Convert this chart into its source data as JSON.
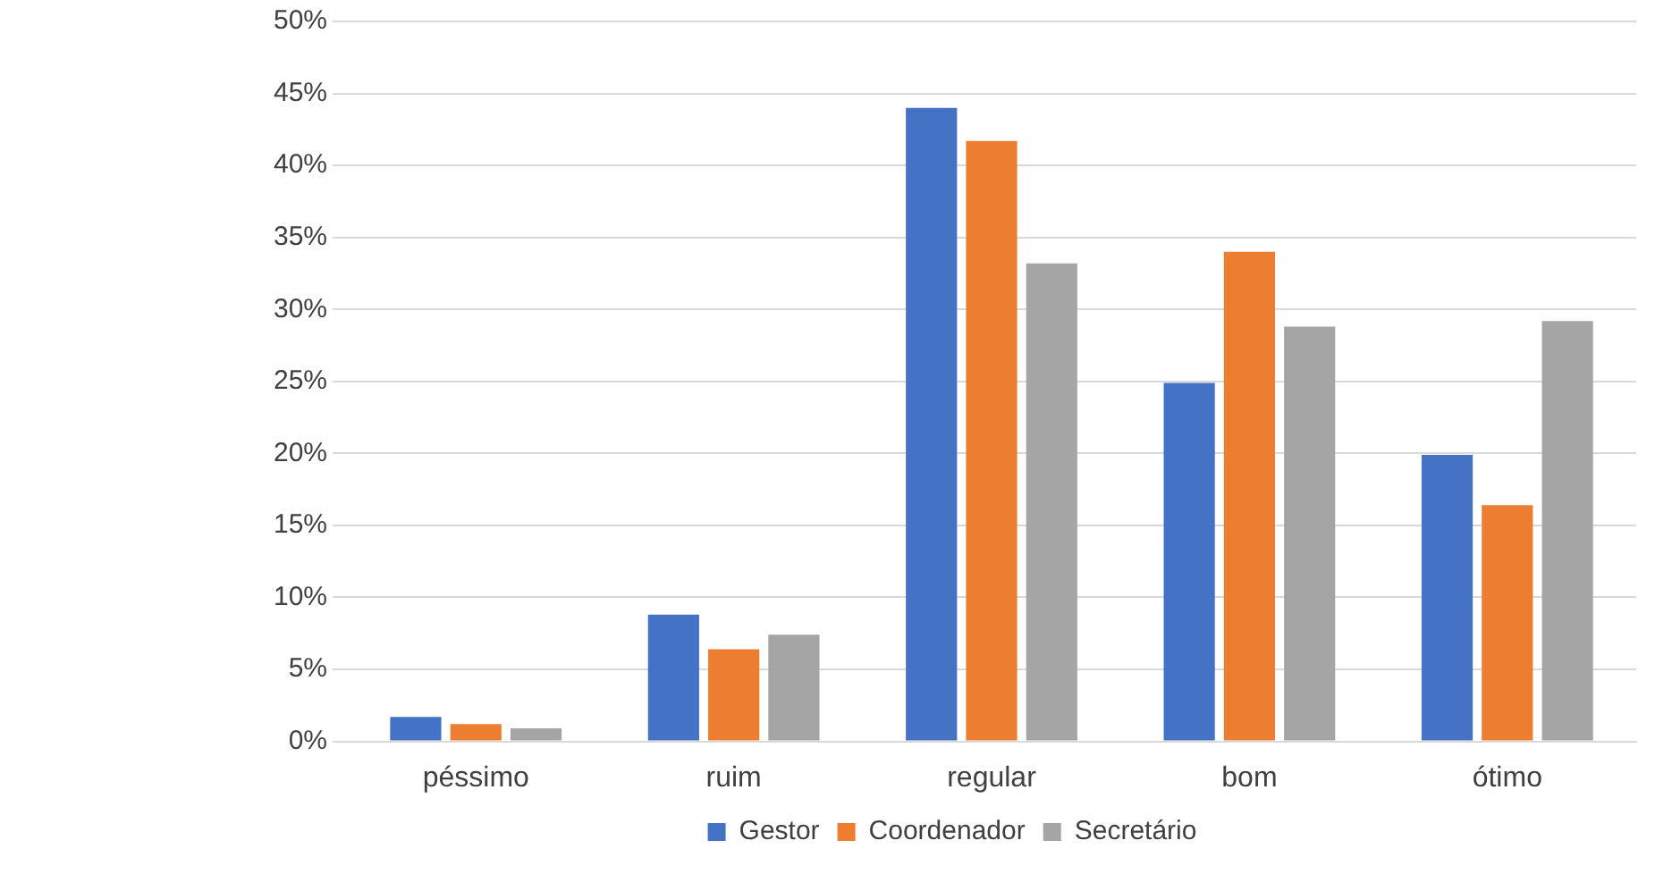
{
  "chart_data": {
    "type": "bar",
    "categories": [
      "péssimo",
      "ruim",
      "regular",
      "bom",
      "ótimo"
    ],
    "series": [
      {
        "name": "Gestor",
        "color": "#4472c4",
        "values": [
          1.7,
          8.8,
          44.0,
          24.9,
          19.9
        ]
      },
      {
        "name": "Coordenador",
        "color": "#ed7d31",
        "values": [
          1.2,
          6.4,
          41.7,
          34.0,
          16.4
        ]
      },
      {
        "name": "Secretário",
        "color": "#a5a5a5",
        "values": [
          0.9,
          7.4,
          33.2,
          28.8,
          29.2
        ]
      }
    ],
    "ylim": [
      0,
      50
    ],
    "yticks": [
      {
        "value": 0,
        "label": "0%"
      },
      {
        "value": 5,
        "label": "5%"
      },
      {
        "value": 10,
        "label": "10%"
      },
      {
        "value": 15,
        "label": "15%"
      },
      {
        "value": 20,
        "label": "20%"
      },
      {
        "value": 25,
        "label": "25%"
      },
      {
        "value": 30,
        "label": "30%"
      },
      {
        "value": 35,
        "label": "35%"
      },
      {
        "value": 40,
        "label": "40%"
      },
      {
        "value": 45,
        "label": "45%"
      },
      {
        "value": 50,
        "label": "50%"
      }
    ],
    "grid": "y",
    "legend": "bottom"
  }
}
